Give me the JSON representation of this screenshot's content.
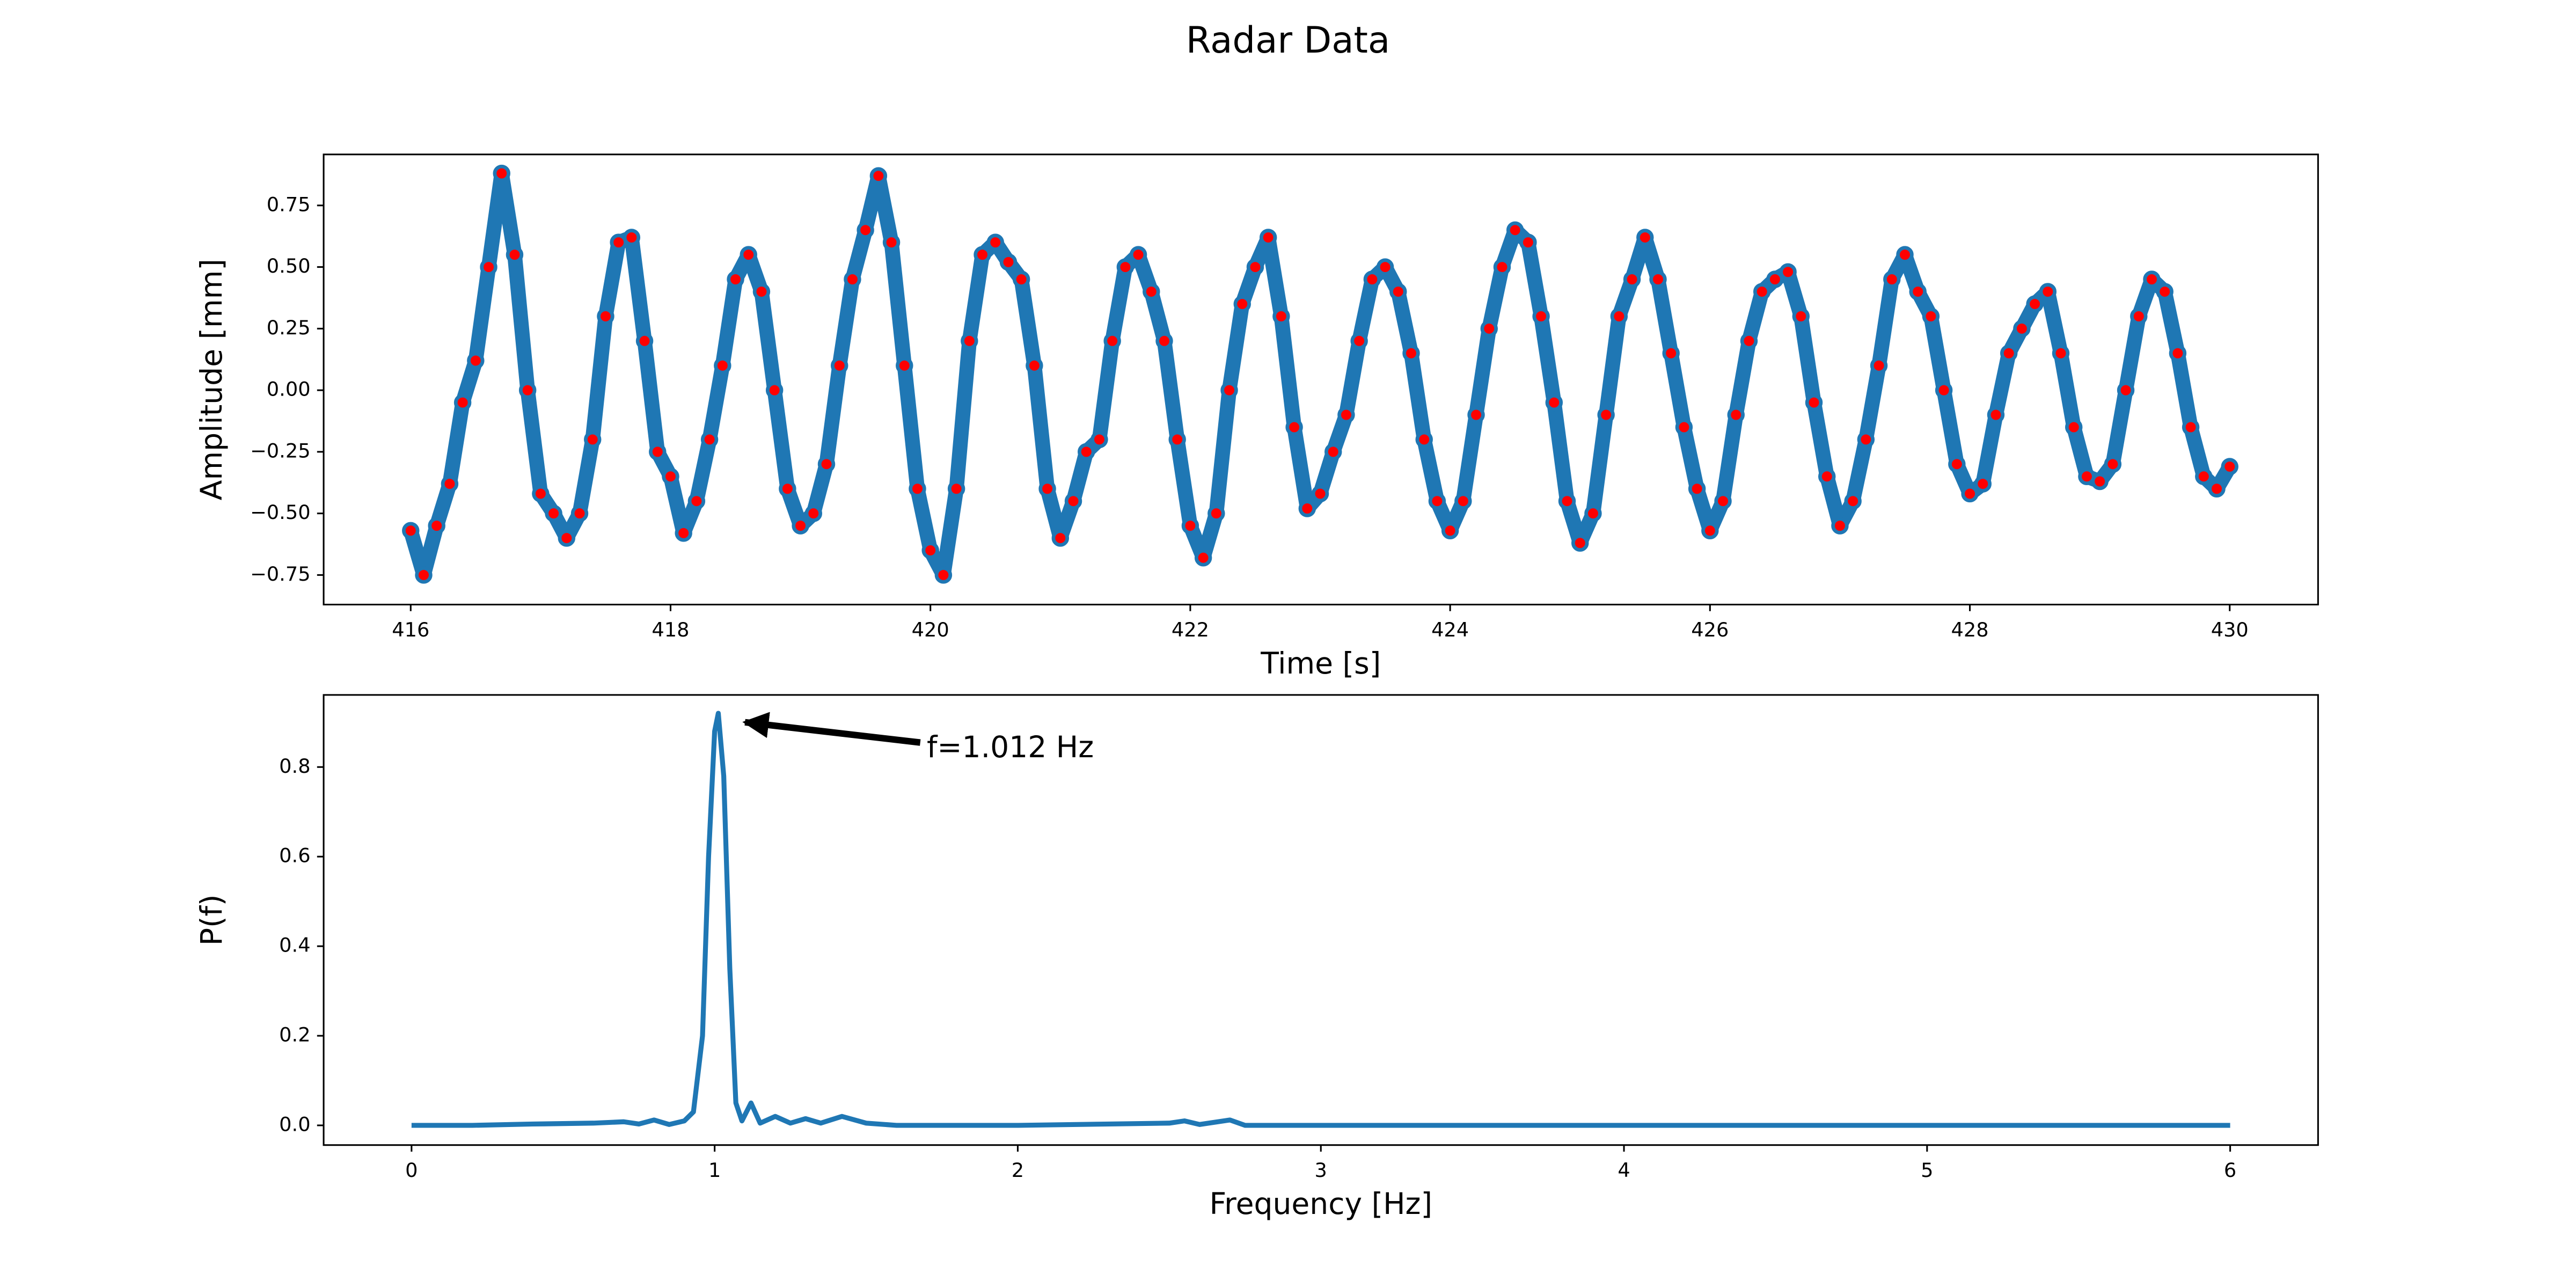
{
  "title": "Radar Data",
  "chart_data": [
    {
      "type": "line",
      "xlabel": "Time [s]",
      "ylabel": "Amplitude [mm]",
      "x": [
        416.0,
        416.1,
        416.2,
        416.3,
        416.4,
        416.5,
        416.6,
        416.7,
        416.8,
        416.9,
        417.0,
        417.1,
        417.2,
        417.3,
        417.4,
        417.5,
        417.6,
        417.7,
        417.8,
        417.9,
        418.0,
        418.1,
        418.2,
        418.3,
        418.4,
        418.5,
        418.6,
        418.7,
        418.8,
        418.9,
        419.0,
        419.1,
        419.2,
        419.3,
        419.4,
        419.5,
        419.6,
        419.7,
        419.8,
        419.9,
        420.0,
        420.1,
        420.2,
        420.3,
        420.4,
        420.5,
        420.6,
        420.7,
        420.8,
        420.9,
        421.0,
        421.1,
        421.2,
        421.3,
        421.4,
        421.5,
        421.6,
        421.7,
        421.8,
        421.9,
        422.0,
        422.1,
        422.2,
        422.3,
        422.4,
        422.5,
        422.6,
        422.7,
        422.8,
        422.9,
        423.0,
        423.1,
        423.2,
        423.3,
        423.4,
        423.5,
        423.6,
        423.7,
        423.8,
        423.9,
        424.0,
        424.1,
        424.2,
        424.3,
        424.4,
        424.5,
        424.6,
        424.7,
        424.8,
        424.9,
        425.0,
        425.1,
        425.2,
        425.3,
        425.4,
        425.5,
        425.6,
        425.7,
        425.8,
        425.9,
        426.0,
        426.1,
        426.2,
        426.3,
        426.4,
        426.5,
        426.6,
        426.7,
        426.8,
        426.9,
        427.0,
        427.1,
        427.2,
        427.3,
        427.4,
        427.5,
        427.6,
        427.7,
        427.8,
        427.9,
        428.0,
        428.1,
        428.2,
        428.3,
        428.4,
        428.5,
        428.6,
        428.7,
        428.8,
        428.9,
        429.0,
        429.1,
        429.2,
        429.3,
        429.4,
        429.5,
        429.6,
        429.7,
        429.8,
        429.9,
        430.0
      ],
      "series": [
        {
          "color": "#1f77b4",
          "marker_color": "#ff0000",
          "values": [
            -0.57,
            -0.75,
            -0.55,
            -0.38,
            -0.05,
            0.12,
            0.5,
            0.88,
            0.55,
            0.0,
            -0.42,
            -0.5,
            -0.6,
            -0.5,
            -0.2,
            0.3,
            0.6,
            0.62,
            0.2,
            -0.25,
            -0.35,
            -0.58,
            -0.45,
            -0.2,
            0.1,
            0.45,
            0.55,
            0.4,
            0.0,
            -0.4,
            -0.55,
            -0.5,
            -0.3,
            0.1,
            0.45,
            0.65,
            0.87,
            0.6,
            0.1,
            -0.4,
            -0.65,
            -0.75,
            -0.4,
            0.2,
            0.55,
            0.6,
            0.52,
            0.45,
            0.1,
            -0.4,
            -0.6,
            -0.45,
            -0.25,
            -0.2,
            0.2,
            0.5,
            0.55,
            0.4,
            0.2,
            -0.2,
            -0.55,
            -0.68,
            -0.5,
            0.0,
            0.35,
            0.5,
            0.62,
            0.3,
            -0.15,
            -0.48,
            -0.42,
            -0.25,
            -0.1,
            0.2,
            0.45,
            0.5,
            0.4,
            0.15,
            -0.2,
            -0.45,
            -0.57,
            -0.45,
            -0.1,
            0.25,
            0.5,
            0.65,
            0.6,
            0.3,
            -0.05,
            -0.45,
            -0.62,
            -0.5,
            -0.1,
            0.3,
            0.45,
            0.62,
            0.45,
            0.15,
            -0.15,
            -0.4,
            -0.57,
            -0.45,
            -0.1,
            0.2,
            0.4,
            0.45,
            0.48,
            0.3,
            -0.05,
            -0.35,
            -0.55,
            -0.45,
            -0.2,
            0.1,
            0.45,
            0.55,
            0.4,
            0.3,
            0.0,
            -0.3,
            -0.42,
            -0.38,
            -0.1,
            0.15,
            0.25,
            0.35,
            0.4,
            0.15,
            -0.15,
            -0.35,
            -0.37,
            -0.3,
            0.0,
            0.3,
            0.45,
            0.4,
            0.15,
            -0.15,
            -0.35,
            -0.4,
            -0.31
          ]
        }
      ],
      "xlim": [
        415.33,
        430.68
      ],
      "ylim": [
        -0.87,
        0.957
      ],
      "xticks": [
        416,
        418,
        420,
        422,
        424,
        426,
        428,
        430
      ],
      "yticks": [
        {
          "value": -0.75,
          "label": "−0.75"
        },
        {
          "value": -0.5,
          "label": "−0.50"
        },
        {
          "value": -0.25,
          "label": "−0.25"
        },
        {
          "value": 0,
          "label": "0.00"
        },
        0.25,
        {
          "value": 0.5,
          "label": "0.50"
        },
        0.75
      ]
    },
    {
      "type": "line",
      "xlabel": "Frequency [Hz]",
      "ylabel": "P(f)",
      "x": [
        0,
        0.2,
        0.4,
        0.6,
        0.7,
        0.75,
        0.8,
        0.85,
        0.9,
        0.93,
        0.96,
        0.98,
        1.0,
        1.012,
        1.03,
        1.05,
        1.07,
        1.09,
        1.12,
        1.15,
        1.2,
        1.25,
        1.3,
        1.35,
        1.42,
        1.5,
        1.6,
        2.0,
        2.5,
        2.55,
        2.6,
        2.7,
        2.75,
        3.0,
        4.0,
        5.0,
        6.0
      ],
      "series": [
        {
          "color": "#1f77b4",
          "values": [
            0,
            0,
            0.003,
            0.005,
            0.008,
            0.003,
            0.012,
            0.002,
            0.01,
            0.03,
            0.2,
            0.6,
            0.88,
            0.92,
            0.78,
            0.35,
            0.05,
            0.01,
            0.05,
            0.005,
            0.02,
            0.005,
            0.015,
            0.005,
            0.02,
            0.005,
            0,
            0,
            0.005,
            0.01,
            0.002,
            0.012,
            0,
            0,
            0,
            0,
            0
          ]
        }
      ],
      "xlim": [
        -0.29,
        6.29
      ],
      "ylim": [
        -0.044,
        0.961
      ],
      "xticks": [
        0,
        1,
        2,
        3,
        4,
        5,
        6
      ],
      "yticks": [
        {
          "value": 0,
          "label": "0.0"
        },
        0.2,
        0.4,
        0.6,
        0.8
      ],
      "annotation": {
        "text": "f=1.012 Hz",
        "xy": [
          1.1,
          0.9
        ],
        "xytext": [
          1.7,
          0.84
        ]
      }
    }
  ]
}
